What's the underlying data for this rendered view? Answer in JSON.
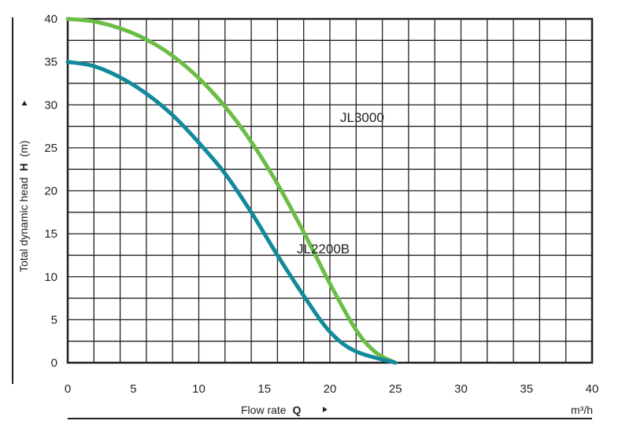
{
  "chart_data": {
    "type": "line",
    "xlabel": "Flow rate",
    "xlabel_symbol": "Q",
    "x_unit": "m³/h",
    "ylabel": "Total dynamic head",
    "ylabel_symbol": "H",
    "y_unit": "(m)",
    "xlim": [
      0,
      40
    ],
    "ylim": [
      0,
      40
    ],
    "xticks": [
      0,
      5,
      10,
      15,
      20,
      25,
      30,
      35,
      40
    ],
    "yticks": [
      0,
      5,
      10,
      15,
      20,
      25,
      30,
      35,
      40
    ],
    "grid": true,
    "series": [
      {
        "name": "JL3000",
        "color": "#6abd45",
        "points": [
          [
            0,
            40
          ],
          [
            2,
            39.7
          ],
          [
            4,
            38.9
          ],
          [
            6,
            37.6
          ],
          [
            8,
            35.7
          ],
          [
            10,
            33.1
          ],
          [
            12,
            29.8
          ],
          [
            14,
            25.7
          ],
          [
            16,
            20.8
          ],
          [
            18,
            15.2
          ],
          [
            20,
            9.2
          ],
          [
            22,
            3.8
          ],
          [
            23.5,
            1.2
          ],
          [
            25,
            0
          ]
        ]
      },
      {
        "name": "JL2200B",
        "color": "#108a9c",
        "points": [
          [
            0,
            35
          ],
          [
            2,
            34.5
          ],
          [
            4,
            33.2
          ],
          [
            6,
            31.3
          ],
          [
            8,
            28.8
          ],
          [
            10,
            25.6
          ],
          [
            12,
            22
          ],
          [
            14,
            17.5
          ],
          [
            16,
            12.5
          ],
          [
            18,
            7.8
          ],
          [
            20,
            3.6
          ],
          [
            22,
            1.3
          ],
          [
            25,
            0
          ]
        ]
      }
    ]
  }
}
